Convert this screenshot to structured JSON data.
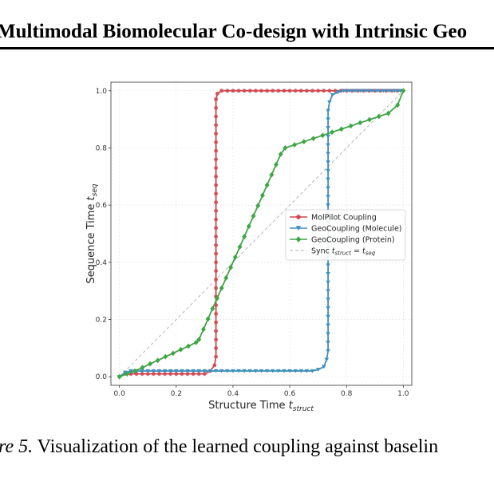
{
  "header": {
    "title": "Multimodal Biomolecular Co-design with Intrinsic Geo"
  },
  "caption": {
    "label": "ure 5.",
    "text": " Visualization of the learned coupling against baselin"
  },
  "chart_data": {
    "type": "line",
    "xlabel": "Structure Time t_struct",
    "ylabel": "Sequence Time t_seq",
    "xlim": [
      -0.03,
      1.03
    ],
    "ylim": [
      -0.03,
      1.03
    ],
    "xticks": [
      "0.0",
      "0.2",
      "0.4",
      "0.6",
      "0.8",
      "1.0"
    ],
    "yticks": [
      "0.0",
      "0.2",
      "0.4",
      "0.6",
      "0.8",
      "1.0"
    ],
    "grid": true,
    "legend_position": "center-right",
    "series": [
      {
        "name": "MolPilot Coupling",
        "color": "#d1474f",
        "marker": "circle",
        "points": [
          [
            0.0,
            0.0
          ],
          [
            0.02,
            0.01
          ],
          [
            0.04,
            0.01
          ],
          [
            0.06,
            0.01
          ],
          [
            0.08,
            0.01
          ],
          [
            0.1,
            0.01
          ],
          [
            0.12,
            0.01
          ],
          [
            0.14,
            0.01
          ],
          [
            0.16,
            0.01
          ],
          [
            0.18,
            0.01
          ],
          [
            0.2,
            0.01
          ],
          [
            0.22,
            0.01
          ],
          [
            0.24,
            0.01
          ],
          [
            0.26,
            0.01
          ],
          [
            0.28,
            0.01
          ],
          [
            0.3,
            0.01
          ],
          [
            0.32,
            0.02
          ],
          [
            0.335,
            0.04
          ],
          [
            0.34,
            0.07
          ],
          [
            0.34,
            0.1
          ],
          [
            0.34,
            0.13
          ],
          [
            0.34,
            0.16
          ],
          [
            0.34,
            0.19
          ],
          [
            0.34,
            0.22
          ],
          [
            0.34,
            0.25
          ],
          [
            0.34,
            0.28
          ],
          [
            0.34,
            0.31
          ],
          [
            0.34,
            0.34
          ],
          [
            0.34,
            0.37
          ],
          [
            0.34,
            0.4
          ],
          [
            0.34,
            0.43
          ],
          [
            0.34,
            0.46
          ],
          [
            0.34,
            0.49
          ],
          [
            0.34,
            0.52
          ],
          [
            0.34,
            0.55
          ],
          [
            0.34,
            0.58
          ],
          [
            0.34,
            0.61
          ],
          [
            0.34,
            0.64
          ],
          [
            0.34,
            0.67
          ],
          [
            0.34,
            0.7
          ],
          [
            0.34,
            0.73
          ],
          [
            0.34,
            0.76
          ],
          [
            0.34,
            0.79
          ],
          [
            0.34,
            0.82
          ],
          [
            0.34,
            0.85
          ],
          [
            0.34,
            0.88
          ],
          [
            0.34,
            0.91
          ],
          [
            0.34,
            0.94
          ],
          [
            0.34,
            0.97
          ],
          [
            0.345,
            0.99
          ],
          [
            0.36,
            1.0
          ],
          [
            0.38,
            1.0
          ],
          [
            0.4,
            1.0
          ],
          [
            0.42,
            1.0
          ],
          [
            0.44,
            1.0
          ],
          [
            0.46,
            1.0
          ],
          [
            0.48,
            1.0
          ],
          [
            0.5,
            1.0
          ],
          [
            0.52,
            1.0
          ],
          [
            0.54,
            1.0
          ],
          [
            0.56,
            1.0
          ],
          [
            0.58,
            1.0
          ],
          [
            0.6,
            1.0
          ],
          [
            0.62,
            1.0
          ],
          [
            0.64,
            1.0
          ],
          [
            0.66,
            1.0
          ],
          [
            0.68,
            1.0
          ],
          [
            0.7,
            1.0
          ],
          [
            0.72,
            1.0
          ],
          [
            0.74,
            1.0
          ],
          [
            0.76,
            1.0
          ],
          [
            0.78,
            1.0
          ],
          [
            0.8,
            1.0
          ],
          [
            0.82,
            1.0
          ],
          [
            0.84,
            1.0
          ],
          [
            0.86,
            1.0
          ],
          [
            0.88,
            1.0
          ],
          [
            0.9,
            1.0
          ],
          [
            0.92,
            1.0
          ],
          [
            0.94,
            1.0
          ],
          [
            0.96,
            1.0
          ],
          [
            0.98,
            1.0
          ],
          [
            1.0,
            1.0
          ]
        ]
      },
      {
        "name": "GeoCoupling (Molecule)",
        "color": "#3f8fc0",
        "marker": "triangle-down",
        "points": [
          [
            0.0,
            0.0
          ],
          [
            0.02,
            0.015
          ],
          [
            0.04,
            0.02
          ],
          [
            0.06,
            0.02
          ],
          [
            0.08,
            0.02
          ],
          [
            0.1,
            0.02
          ],
          [
            0.12,
            0.02
          ],
          [
            0.14,
            0.02
          ],
          [
            0.16,
            0.02
          ],
          [
            0.18,
            0.02
          ],
          [
            0.2,
            0.02
          ],
          [
            0.22,
            0.02
          ],
          [
            0.24,
            0.02
          ],
          [
            0.26,
            0.02
          ],
          [
            0.28,
            0.02
          ],
          [
            0.3,
            0.02
          ],
          [
            0.32,
            0.02
          ],
          [
            0.34,
            0.02
          ],
          [
            0.36,
            0.02
          ],
          [
            0.38,
            0.02
          ],
          [
            0.4,
            0.02
          ],
          [
            0.42,
            0.02
          ],
          [
            0.44,
            0.02
          ],
          [
            0.46,
            0.02
          ],
          [
            0.48,
            0.02
          ],
          [
            0.5,
            0.02
          ],
          [
            0.52,
            0.02
          ],
          [
            0.54,
            0.02
          ],
          [
            0.56,
            0.02
          ],
          [
            0.58,
            0.02
          ],
          [
            0.6,
            0.02
          ],
          [
            0.62,
            0.02
          ],
          [
            0.64,
            0.02
          ],
          [
            0.66,
            0.02
          ],
          [
            0.68,
            0.02
          ],
          [
            0.7,
            0.025
          ],
          [
            0.72,
            0.035
          ],
          [
            0.73,
            0.06
          ],
          [
            0.735,
            0.09
          ],
          [
            0.735,
            0.12
          ],
          [
            0.735,
            0.15
          ],
          [
            0.735,
            0.18
          ],
          [
            0.735,
            0.21
          ],
          [
            0.735,
            0.24
          ],
          [
            0.735,
            0.27
          ],
          [
            0.735,
            0.3
          ],
          [
            0.735,
            0.33
          ],
          [
            0.735,
            0.36
          ],
          [
            0.735,
            0.39
          ],
          [
            0.735,
            0.42
          ],
          [
            0.735,
            0.45
          ],
          [
            0.735,
            0.48
          ],
          [
            0.735,
            0.51
          ],
          [
            0.735,
            0.54
          ],
          [
            0.735,
            0.57
          ],
          [
            0.735,
            0.6
          ],
          [
            0.735,
            0.63
          ],
          [
            0.735,
            0.66
          ],
          [
            0.735,
            0.69
          ],
          [
            0.735,
            0.72
          ],
          [
            0.735,
            0.75
          ],
          [
            0.735,
            0.78
          ],
          [
            0.735,
            0.81
          ],
          [
            0.735,
            0.84
          ],
          [
            0.735,
            0.87
          ],
          [
            0.735,
            0.9
          ],
          [
            0.735,
            0.93
          ],
          [
            0.74,
            0.96
          ],
          [
            0.75,
            0.985
          ],
          [
            0.77,
            0.995
          ],
          [
            0.79,
            1.0
          ],
          [
            0.81,
            1.0
          ],
          [
            0.83,
            1.0
          ],
          [
            0.85,
            1.0
          ],
          [
            0.87,
            1.0
          ],
          [
            0.89,
            1.0
          ],
          [
            0.91,
            1.0
          ],
          [
            0.93,
            1.0
          ],
          [
            0.95,
            1.0
          ],
          [
            0.97,
            1.0
          ],
          [
            0.99,
            1.0
          ]
        ]
      },
      {
        "name": "GeoCoupling (Protein)",
        "color": "#3fa646",
        "marker": "diamond",
        "points": [
          [
            0.0,
            0.0
          ],
          [
            0.027,
            0.01
          ],
          [
            0.054,
            0.02
          ],
          [
            0.081,
            0.032
          ],
          [
            0.108,
            0.045
          ],
          [
            0.135,
            0.057
          ],
          [
            0.162,
            0.07
          ],
          [
            0.189,
            0.082
          ],
          [
            0.216,
            0.095
          ],
          [
            0.243,
            0.107
          ],
          [
            0.27,
            0.12
          ],
          [
            0.28,
            0.13
          ],
          [
            0.296,
            0.166
          ],
          [
            0.312,
            0.202
          ],
          [
            0.328,
            0.238
          ],
          [
            0.344,
            0.274
          ],
          [
            0.36,
            0.31
          ],
          [
            0.376,
            0.346
          ],
          [
            0.392,
            0.382
          ],
          [
            0.408,
            0.418
          ],
          [
            0.424,
            0.454
          ],
          [
            0.44,
            0.49
          ],
          [
            0.456,
            0.526
          ],
          [
            0.472,
            0.562
          ],
          [
            0.488,
            0.598
          ],
          [
            0.504,
            0.634
          ],
          [
            0.52,
            0.67
          ],
          [
            0.536,
            0.706
          ],
          [
            0.552,
            0.742
          ],
          [
            0.568,
            0.778
          ],
          [
            0.584,
            0.8
          ],
          [
            0.617,
            0.811
          ],
          [
            0.65,
            0.822
          ],
          [
            0.683,
            0.833
          ],
          [
            0.716,
            0.844
          ],
          [
            0.749,
            0.855
          ],
          [
            0.782,
            0.866
          ],
          [
            0.815,
            0.877
          ],
          [
            0.848,
            0.888
          ],
          [
            0.881,
            0.899
          ],
          [
            0.914,
            0.91
          ],
          [
            0.947,
            0.921
          ],
          [
            0.98,
            0.95
          ],
          [
            1.0,
            1.0
          ]
        ]
      }
    ],
    "reference_line": {
      "name": "Sync t_struct = t_seq",
      "color": "#b8b0b0",
      "dashed": true,
      "points": [
        [
          0.0,
          0.0
        ],
        [
          1.0,
          1.0
        ]
      ]
    }
  }
}
